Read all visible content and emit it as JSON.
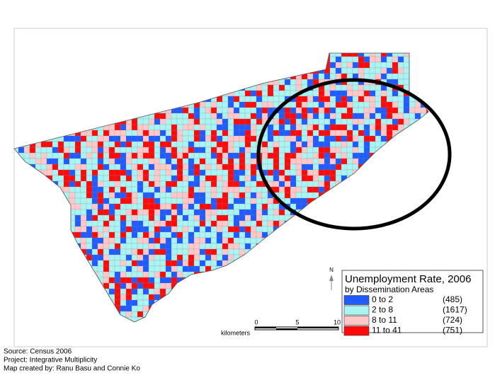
{
  "legend": {
    "title": "Unemployment Rate, 2006",
    "subtitle": "by Dissemination Areas",
    "items": [
      {
        "range": "0  to  2",
        "count": "(485)",
        "color": "#1e5cff"
      },
      {
        "range": "2  to  8",
        "count": "(1617)",
        "color": "#aaf4f4"
      },
      {
        "range": "8 to 11",
        "count": "(724)",
        "color": "#ffc8c8"
      },
      {
        "range": "11 to 41",
        "count": "(751)",
        "color": "#ff0a0a"
      }
    ]
  },
  "scale_bar": {
    "unit": "kilometers",
    "ticks": [
      "0",
      "5",
      "10"
    ]
  },
  "north": "N",
  "credits": [
    "Source: Census 2006",
    "Project: Integrative Multiplicity",
    "Map created by: Ranu Basu and Connie Ko"
  ]
}
